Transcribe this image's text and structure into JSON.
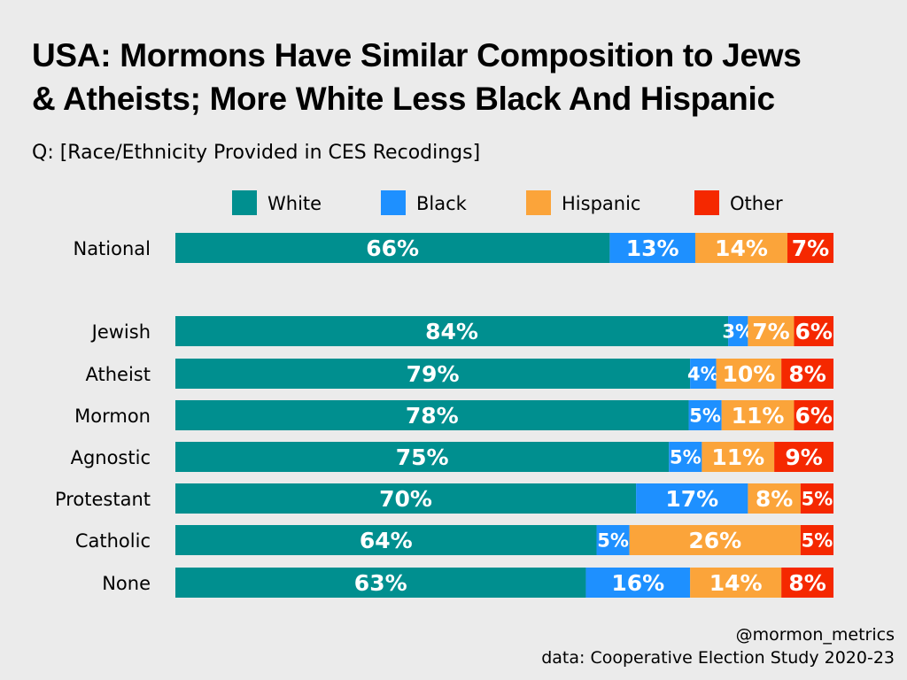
{
  "header": {
    "title_line1": "USA: Mormons Have Similar Composition to Jews",
    "title_line2": "& Atheists; More White Less Black And Hispanic",
    "subtitle": "Q: [Race/Ethnicity Provided in CES Recodings]"
  },
  "footer": {
    "handle": "@mormon_metrics",
    "source": "data: Cooperative Election Study 2020-23"
  },
  "chart_data": {
    "type": "bar",
    "orientation": "horizontal",
    "stacked": true,
    "normalized_percent": true,
    "grid": false,
    "legend_position": "top",
    "categories": [
      "National",
      "Jewish",
      "Atheist",
      "Mormon",
      "Agnostic",
      "Protestant",
      "Catholic",
      "None"
    ],
    "series": [
      {
        "name": "White",
        "color": "#008f8f",
        "values": [
          66,
          84,
          79,
          78,
          75,
          70,
          64,
          63
        ]
      },
      {
        "name": "Black",
        "color": "#1e90ff",
        "values": [
          13,
          3,
          4,
          5,
          5,
          17,
          5,
          16
        ]
      },
      {
        "name": "Hispanic",
        "color": "#fba43a",
        "values": [
          14,
          7,
          10,
          11,
          11,
          8,
          26,
          14
        ]
      },
      {
        "name": "Other",
        "color": "#f52800",
        "values": [
          7,
          6,
          8,
          6,
          9,
          5,
          5,
          8
        ]
      }
    ],
    "value_suffix": "%"
  }
}
